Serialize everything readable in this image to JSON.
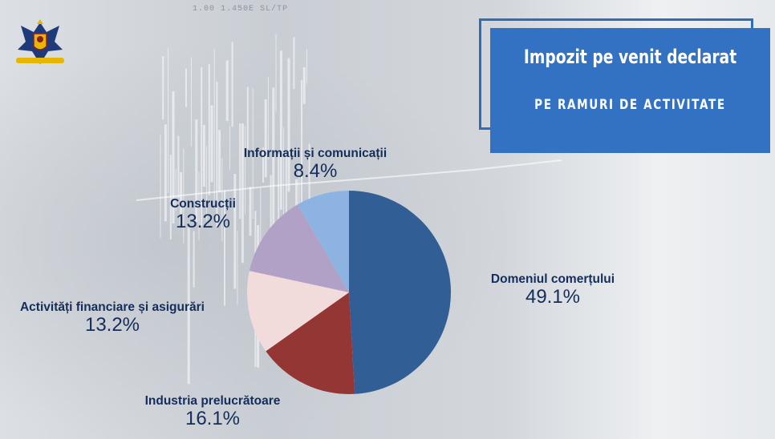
{
  "header": {
    "title": "Impozit pe venit declarat",
    "subtitle": "PE RAMURI DE ACTIVITATE",
    "ticker_values": [
      "1.00",
      "1.450E",
      "SL/TP"
    ]
  },
  "colors": {
    "title_bg": "#3372c2",
    "label_text": "#142d5a"
  },
  "chart_data": {
    "type": "pie",
    "title": "Impozit pe venit declarat",
    "subtitle": "PE RAMURI DE ACTIVITATE",
    "start_angle_deg": 0,
    "direction": "clockwise",
    "slices": [
      {
        "label": "Domeniul comerțului",
        "value": 49.1,
        "display": "49.1%",
        "color": "#325e96"
      },
      {
        "label": "Industria prelucrătoare",
        "value": 16.1,
        "display": "16.1%",
        "color": "#943634"
      },
      {
        "label": "Activități financiare și asigurări",
        "value": 13.2,
        "display": "13.2%",
        "color": "#f2dcdb"
      },
      {
        "label": "Construcții",
        "value": 13.2,
        "display": "13.2%",
        "color": "#b2a1c7"
      },
      {
        "label": "Informații și comunicații",
        "value": 8.4,
        "display": "8.4%",
        "color": "#8db3e2"
      }
    ]
  }
}
